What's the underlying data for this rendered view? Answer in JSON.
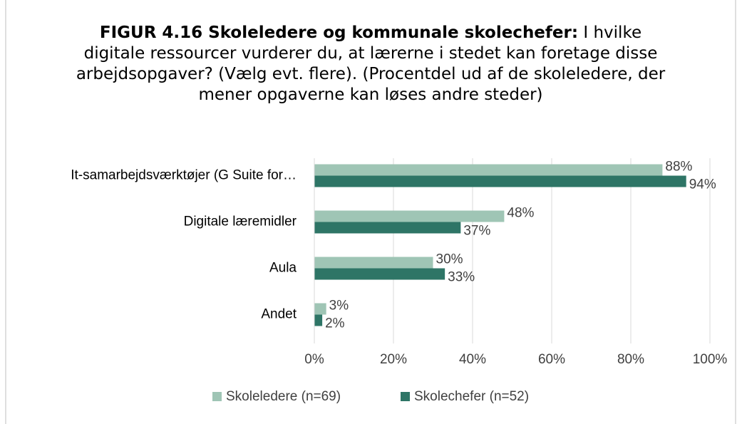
{
  "chart_data": {
    "type": "bar",
    "title": "FIGUR 4.16 Skoleledere og kommunale skolechefer:",
    "subtitle": "I hvilke digitale ressourcer vurderer du, at lærerne i stedet kan foretage disse arbejdsopgaver? (Vælg evt. flere). (Procentdel ud af de skoleledere, der mener opgaverne kan løses andre steder)",
    "orientation": "horizontal",
    "categories": [
      "It-samarbejdsværktøjer (G Suite for…",
      "Digitale læremidler",
      "Aula",
      "Andet"
    ],
    "series": [
      {
        "name": "Skoleledere (n=69)",
        "color": "#9fc5b5",
        "values": [
          88,
          48,
          30,
          3
        ],
        "value_labels": [
          "88%",
          "48%",
          "30%",
          "3%"
        ]
      },
      {
        "name": "Skolechefer (n=52)",
        "color": "#2e7566",
        "values": [
          94,
          37,
          33,
          2
        ],
        "value_labels": [
          "94%",
          "37%",
          "33%",
          "2%"
        ]
      }
    ],
    "xlim": [
      0,
      100
    ],
    "xticks": [
      {
        "value": 0,
        "label": "0%"
      },
      {
        "value": 20,
        "label": "20%"
      },
      {
        "value": 40,
        "label": "40%"
      },
      {
        "value": 60,
        "label": "60%"
      },
      {
        "value": 80,
        "label": "80%"
      },
      {
        "value": 100,
        "label": "100%"
      }
    ],
    "grid": true,
    "legend": "bottom"
  }
}
